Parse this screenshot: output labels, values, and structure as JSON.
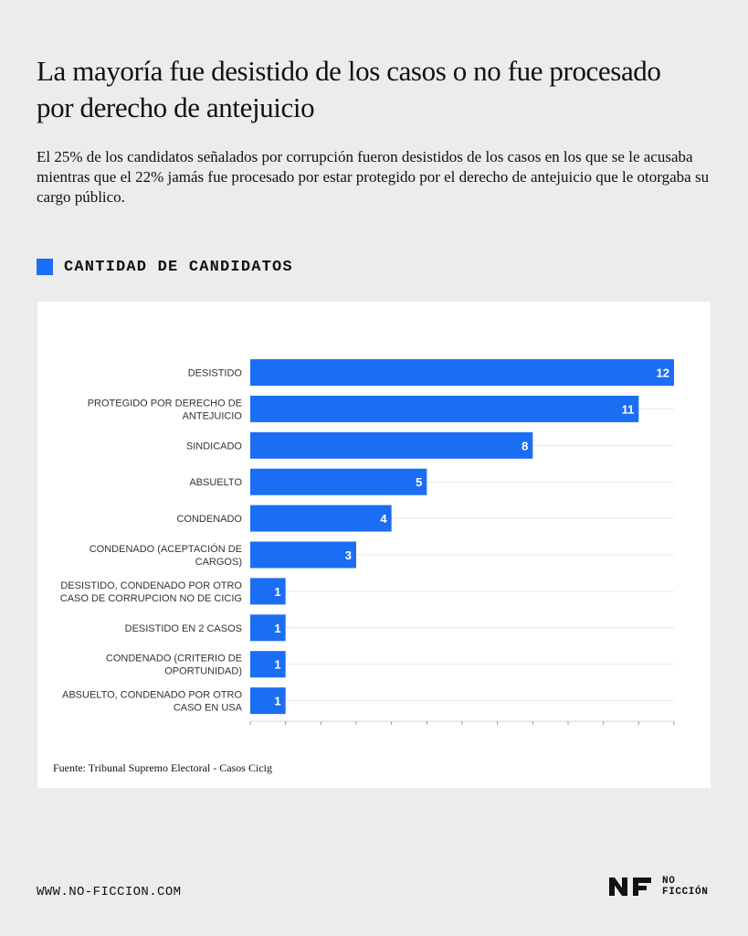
{
  "header": {
    "title": "La mayoría fue desistido de los casos o no fue procesado por derecho de antejuicio",
    "subtitle": "El 25% de los candidatos señalados por corrupción fueron desistidos de los casos en los que se le acusaba mientras que el 22% jamás fue procesado por estar protegido por el derecho de antejuicio que le otorgaba su cargo público."
  },
  "section": {
    "label": "CANTIDAD DE CANDIDATOS"
  },
  "chart_data": {
    "type": "bar",
    "orientation": "horizontal",
    "categories": [
      [
        "DESISTIDO"
      ],
      [
        "PROTEGIDO POR DERECHO DE",
        "ANTEJUICIO"
      ],
      [
        "SINDICADO"
      ],
      [
        "ABSUELTO"
      ],
      [
        "CONDENADO"
      ],
      [
        "CONDENADO (ACEPTACIÓN DE",
        "CARGOS)"
      ],
      [
        "DESISTIDO, CONDENADO POR OTRO",
        "CASO DE CORRUPCION NO DE CICIG"
      ],
      [
        "DESISTIDO EN 2 CASOS"
      ],
      [
        "CONDENADO (CRITERIO DE",
        "OPORTUNIDAD)"
      ],
      [
        "ABSUELTO, CONDENADO POR OTRO",
        "CASO EN USA"
      ]
    ],
    "values": [
      12,
      11,
      8,
      5,
      4,
      3,
      1,
      1,
      1,
      1
    ],
    "xlim": [
      0,
      12
    ],
    "grid": true,
    "bar_color": "#1b6ef3",
    "value_label_color": "#ffffff",
    "source": "Fuente: Tribunal Supremo Electoral - Casos Cicig"
  },
  "footer": {
    "url": "WWW.NO-FICCION.COM",
    "logo_line1": "NO",
    "logo_line2": "FICCIÓN"
  },
  "colors": {
    "accent": "#1b6ef3",
    "background": "#ececec",
    "card": "#ffffff"
  }
}
